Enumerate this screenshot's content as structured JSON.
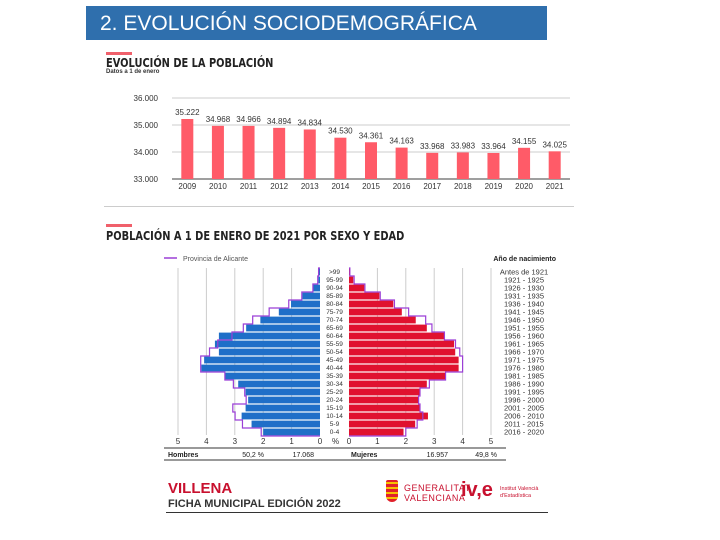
{
  "header": {
    "title": "2. EVOLUCIÓN SOCIODEMOGRÁFICA"
  },
  "colors": {
    "banner": "#2f6fad",
    "bar": "#ff5b68",
    "men": "#1f6fc8",
    "women": "#e0112f",
    "province": "#9b3fd6"
  },
  "chart_data": [
    {
      "type": "bar",
      "title": "EVOLUCIÓN DE LA POBLACIÓN",
      "subtitle": "Datos a 1 de enero",
      "categories": [
        "2009",
        "2010",
        "2011",
        "2012",
        "2013",
        "2014",
        "2015",
        "2016",
        "2017",
        "2018",
        "2019",
        "2020",
        "2021"
      ],
      "values": [
        35222,
        34968,
        34966,
        34894,
        34834,
        34530,
        34361,
        34163,
        33968,
        33983,
        33964,
        34155,
        34025
      ],
      "value_labels": [
        "35.222",
        "34.968",
        "34.966",
        "34.894",
        "34.834",
        "34.530",
        "34.361",
        "34.163",
        "33.968",
        "33.983",
        "33.964",
        "34.155",
        "34.025"
      ],
      "ylim": [
        33000,
        36000
      ],
      "yticks": [
        33000,
        34000,
        35000,
        36000
      ],
      "ytick_labels": [
        "33.000",
        "34.000",
        "35.000",
        "36.000"
      ],
      "grid": true
    },
    {
      "type": "bar",
      "subtype": "population-pyramid",
      "title": "POBLACIÓN A 1 DE ENERO DE 2021 POR SEXO Y EDAD",
      "legend": "Provincia de Alicante",
      "birth_header": "Año de nacimiento",
      "categories": [
        ">99",
        "95-99",
        "90-94",
        "85-89",
        "80-84",
        "75-79",
        "70-74",
        "65-69",
        "60-64",
        "55-59",
        "50-54",
        "45-49",
        "40-44",
        "35-39",
        "30-34",
        "25-29",
        "20-24",
        "15-19",
        "10-14",
        "5-9",
        "0-4"
      ],
      "birth_years": [
        "Antes de 1921",
        "1921 - 1925",
        "1926 - 1930",
        "1931 - 1935",
        "1936 - 1940",
        "1941 - 1945",
        "1946 - 1950",
        "1951 - 1955",
        "1956 - 1960",
        "1961 - 1965",
        "1966 - 1970",
        "1971 - 1975",
        "1976 - 1980",
        "1981 - 1985",
        "1986 - 1990",
        "1991 - 1995",
        "1996 - 2000",
        "2001 - 2005",
        "2006 - 2010",
        "2011 - 2015",
        "2016 - 2020"
      ],
      "series": [
        {
          "name": "Hombres",
          "values": [
            0.04,
            0.06,
            0.24,
            0.62,
            1.02,
            1.45,
            2.1,
            2.6,
            3.56,
            3.7,
            3.56,
            4.08,
            4.18,
            3.35,
            2.88,
            2.62,
            2.53,
            2.62,
            2.76,
            2.41,
            2.0
          ]
        },
        {
          "name": "Mujeres",
          "values": [
            0.02,
            0.15,
            0.54,
            1.07,
            1.56,
            1.86,
            2.35,
            2.74,
            3.36,
            3.7,
            3.74,
            3.86,
            3.86,
            3.39,
            2.74,
            2.5,
            2.45,
            2.5,
            2.78,
            2.33,
            1.92
          ]
        },
        {
          "name": "Provincia de Alicante - Hombres",
          "values": [
            0.05,
            0.08,
            0.25,
            0.64,
            1.1,
            1.79,
            2.37,
            2.7,
            3.1,
            3.6,
            3.89,
            4.2,
            4.2,
            3.35,
            3.05,
            2.65,
            2.6,
            3.07,
            2.99,
            2.73,
            2.07
          ]
        },
        {
          "name": "Provincia de Alicante - Mujeres",
          "values": [
            0.03,
            0.18,
            0.56,
            1.1,
            1.6,
            2.1,
            2.7,
            2.92,
            3.36,
            3.75,
            3.9,
            4.0,
            4.0,
            3.4,
            2.83,
            2.5,
            2.45,
            2.5,
            2.6,
            2.4,
            2.0
          ]
        }
      ],
      "xlim": [
        0,
        5
      ],
      "xtick_labels": [
        "5",
        "4",
        "3",
        "2",
        "1",
        "0",
        "%",
        "0",
        "1",
        "2",
        "3",
        "4",
        "5"
      ],
      "xlabel": "%",
      "summary": {
        "men_label": "Hombres",
        "men_pct": "50,2 %",
        "men_count": "17.068",
        "women_label": "Mujeres",
        "women_count": "16.957",
        "women_pct": "49,8 %"
      }
    }
  ],
  "footer": {
    "municipality": "VILLENA",
    "edition": "FICHA MUNICIPAL EDICIÓN 2022",
    "gva_line1": "GENERALITAT",
    "gva_line2": "VALENCIANA",
    "ive_logo": "iv,e",
    "ive_line1": "Institut Valencià",
    "ive_line2": "d'Estadística"
  }
}
